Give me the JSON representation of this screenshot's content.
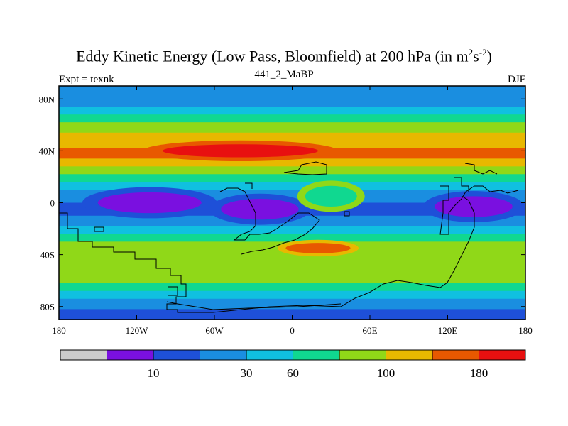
{
  "chart_data": {
    "type": "heatmap",
    "title_main": "Eddy Kinetic Energy (Low Pass, Bloomfield) at 200 hPa (in m",
    "title_sup1": "2",
    "title_mid": "s",
    "title_sup2": "-2",
    "title_end": ")",
    "subtitle": "441_2_MaBP",
    "left_label": "Expt = texnk",
    "right_label": "DJF",
    "x_range": [
      -180,
      180
    ],
    "y_range": [
      -90,
      90
    ],
    "x_ticks": [
      {
        "value": -180,
        "label": "180"
      },
      {
        "value": -120,
        "label": "120W"
      },
      {
        "value": -60,
        "label": "60W"
      },
      {
        "value": 0,
        "label": "0"
      },
      {
        "value": 60,
        "label": "60E"
      },
      {
        "value": 120,
        "label": "120E"
      },
      {
        "value": 180,
        "label": "180"
      }
    ],
    "y_ticks": [
      {
        "value": 80,
        "label": "80N"
      },
      {
        "value": 40,
        "label": "40N"
      },
      {
        "value": 0,
        "label": "0"
      },
      {
        "value": -40,
        "label": "40S"
      },
      {
        "value": -80,
        "label": "80S"
      }
    ],
    "colorbar": {
      "colors": [
        "#cccccc",
        "#7a10e0",
        "#1e50d8",
        "#1a8ee0",
        "#10c0e0",
        "#10d890",
        "#90d818",
        "#e8b800",
        "#e85800",
        "#e81010"
      ],
      "labels": [
        {
          "after_box": 2,
          "label": "10"
        },
        {
          "after_box": 4,
          "label": "30"
        },
        {
          "after_box": 5,
          "label": "60"
        },
        {
          "after_box": 7,
          "label": "100"
        },
        {
          "after_box": 9,
          "label": "180"
        }
      ]
    },
    "bands_description": "latitudinal bands of EKE; storm track maximum near 40N over 150W-30E, secondary maximum near 35S 15E-45E, minima near equator over 150W-60W and 100E-150E",
    "lat_profile": [
      {
        "lat": 90,
        "level": 4
      },
      {
        "lat": 82,
        "level": 4
      },
      {
        "lat": 74,
        "level": 5
      },
      {
        "lat": 68,
        "level": 6
      },
      {
        "lat": 62,
        "level": 7
      },
      {
        "lat": 54,
        "level": 8
      },
      {
        "lat": 42,
        "level": 9
      },
      {
        "lat": 34,
        "level": 8
      },
      {
        "lat": 28,
        "level": 7
      },
      {
        "lat": 22,
        "level": 6
      },
      {
        "lat": 16,
        "level": 5
      },
      {
        "lat": 10,
        "level": 4
      },
      {
        "lat": 0,
        "level": 3
      },
      {
        "lat": -10,
        "level": 4
      },
      {
        "lat": -18,
        "level": 5
      },
      {
        "lat": -24,
        "level": 6
      },
      {
        "lat": -30,
        "level": 7
      },
      {
        "lat": -40,
        "level": 7
      },
      {
        "lat": -54,
        "level": 7
      },
      {
        "lat": -62,
        "level": 6
      },
      {
        "lat": -68,
        "level": 5
      },
      {
        "lat": -74,
        "level": 4
      },
      {
        "lat": -82,
        "level": 3
      },
      {
        "lat": -90,
        "level": 3
      }
    ],
    "features": [
      {
        "kind": "max",
        "lon_center": -40,
        "lat_center": 40,
        "lon_half": 60,
        "lat_half": 5,
        "level": 10
      },
      {
        "kind": "max",
        "lon_center": 20,
        "lat_center": -35,
        "lon_half": 25,
        "lat_half": 4,
        "level": 9
      },
      {
        "kind": "min",
        "lon_center": -110,
        "lat_center": 0,
        "lon_half": 40,
        "lat_half": 8,
        "level": 2
      },
      {
        "kind": "min",
        "lon_center": -25,
        "lat_center": -5,
        "lon_half": 30,
        "lat_half": 8,
        "level": 2
      },
      {
        "kind": "min",
        "lon_center": 140,
        "lat_center": -3,
        "lon_half": 30,
        "lat_half": 8,
        "level": 2
      },
      {
        "kind": "min",
        "lon_center": 30,
        "lat_center": 5,
        "lon_half": 20,
        "lat_half": 8,
        "level": 6
      }
    ]
  }
}
